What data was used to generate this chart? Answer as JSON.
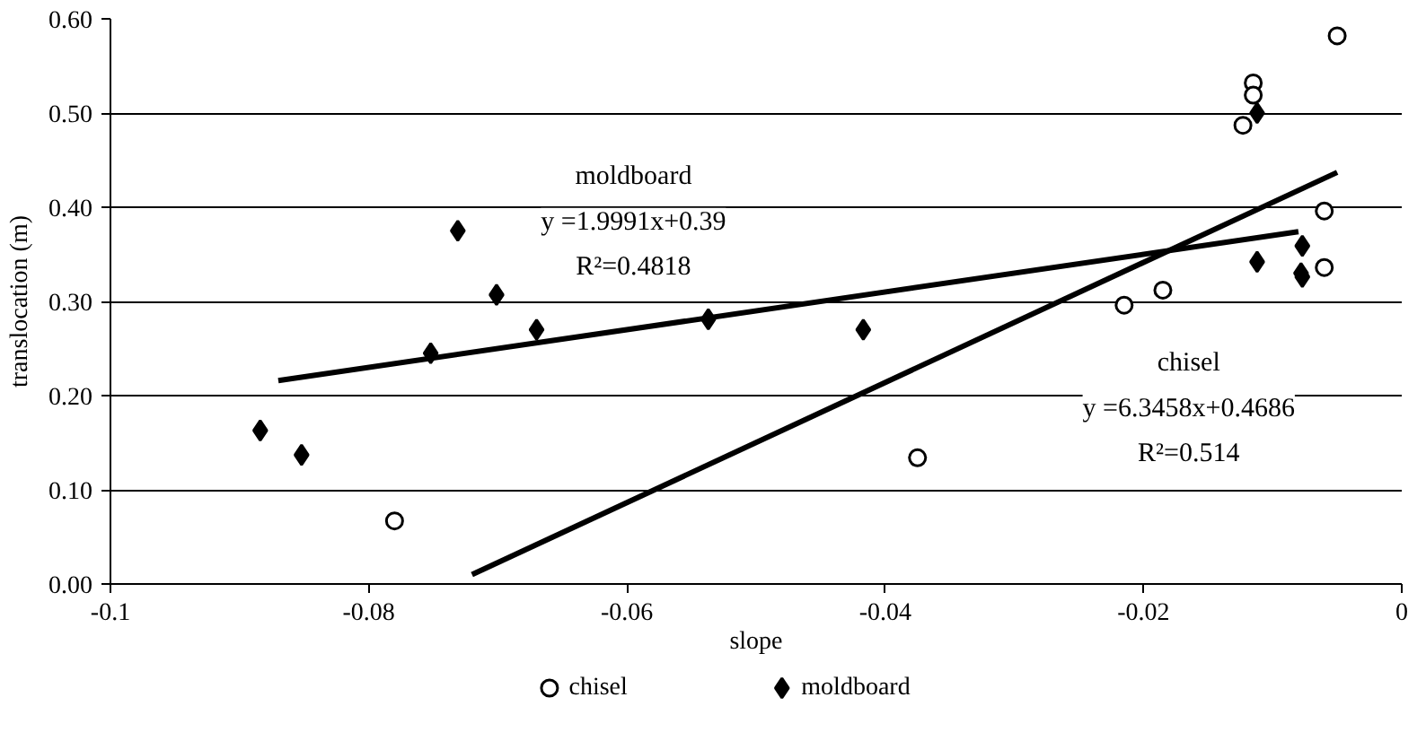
{
  "chart_data": {
    "type": "scatter",
    "xlabel": "slope",
    "ylabel": "translocation (m)",
    "xlim": [
      -0.1,
      0
    ],
    "ylim": [
      0,
      0.6
    ],
    "xticks": [
      -0.1,
      -0.08,
      -0.06,
      -0.04,
      -0.02,
      0
    ],
    "yticks": [
      {
        "value": 0,
        "label": "0.00"
      },
      {
        "value": 0.1,
        "label": "0.10"
      },
      {
        "value": 0.2,
        "label": "0.20"
      },
      {
        "value": 0.3,
        "label": "0.30"
      },
      {
        "value": 0.4,
        "label": "0.40"
      },
      {
        "value": 0.5,
        "label": "0.50"
      },
      {
        "value": 0.6,
        "label": "0.60"
      }
    ],
    "grid": "y",
    "legend": "bottom",
    "series": [
      {
        "name": "chisel",
        "marker": "circle",
        "color": "#000000",
        "x": [
          -0.078,
          -0.0375,
          -0.0215,
          -0.0185,
          -0.0123,
          -0.0115,
          -0.0115,
          -0.005,
          -0.006,
          -0.006
        ],
        "values": [
          0.067,
          0.134,
          0.296,
          0.312,
          0.487,
          0.532,
          0.519,
          0.582,
          0.396,
          0.336
        ]
      },
      {
        "name": "moldboard",
        "marker": "diamond",
        "color": "#000000",
        "x": [
          -0.0884,
          -0.0852,
          -0.0752,
          -0.0731,
          -0.0701,
          -0.067,
          -0.0537,
          -0.0417,
          -0.0112,
          -0.0112,
          -0.0077,
          -0.0078,
          -0.0077
        ],
        "values": [
          0.163,
          0.137,
          0.245,
          0.375,
          0.307,
          0.27,
          0.281,
          0.27,
          0.5,
          0.342,
          0.359,
          0.33,
          0.326
        ]
      },
      {
        "type": "line",
        "color": "#000000",
        "x": [
          -0.087,
          -0.008
        ],
        "values": [
          0.216,
          0.374
        ]
      },
      {
        "type": "line",
        "color": "#000000",
        "x": [
          -0.072,
          -0.005
        ],
        "values": [
          0.01,
          0.437
        ]
      }
    ],
    "annotations": [
      "moldboard",
      "y =1.9991x+0.39",
      "R²=0.4818",
      "chisel",
      "y =6.3458x+0.4686",
      "R²=0.514"
    ]
  }
}
